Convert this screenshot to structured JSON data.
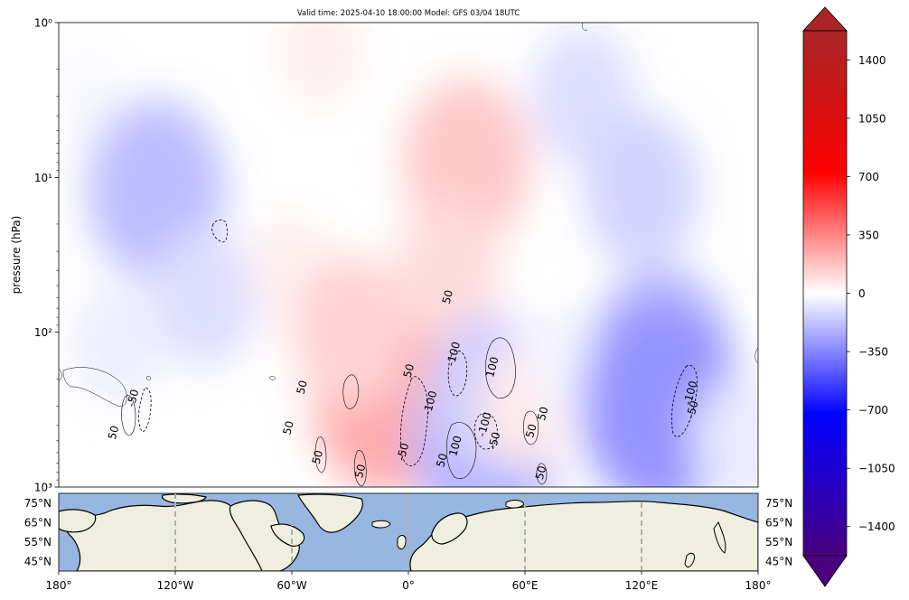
{
  "chart_data": {
    "type": "heatmap",
    "title": "Valid time: 2025-04-10 18:00:00 Model: GFS 03/04 18UTC",
    "xlabel": "",
    "ylabel": "pressure (hPa)",
    "y_scale": "log",
    "y_inverted": true,
    "ylim": [
      1000,
      1
    ],
    "y_ticks": [
      {
        "value": 1,
        "label": "10⁰"
      },
      {
        "value": 10,
        "label": "10¹"
      },
      {
        "value": 100,
        "label": "10²"
      },
      {
        "value": 1000,
        "label": "10³"
      }
    ],
    "xlim": [
      -180,
      180
    ],
    "x_ticks": [
      {
        "value": -180,
        "label": "180°"
      },
      {
        "value": -120,
        "label": "120°W"
      },
      {
        "value": -60,
        "label": "60°W"
      },
      {
        "value": 0,
        "label": "0°"
      },
      {
        "value": 60,
        "label": "60°E"
      },
      {
        "value": 120,
        "label": "120°E"
      },
      {
        "value": 180,
        "label": "180°"
      }
    ],
    "colorbar": {
      "colormap": "purple-blue-white-red-brown (diverging)",
      "range": [
        -1575,
        1575
      ],
      "extend": "both",
      "ticks": [
        {
          "value": 1400,
          "label": "1400"
        },
        {
          "value": 1050,
          "label": "1050"
        },
        {
          "value": 700,
          "label": "700"
        },
        {
          "value": 350,
          "label": "350"
        },
        {
          "value": 0,
          "label": "0"
        },
        {
          "value": -350,
          "label": "−350"
        },
        {
          "value": -700,
          "label": "−700"
        },
        {
          "value": -1050,
          "label": "−1050"
        },
        {
          "value": -1400,
          "label": "−1400"
        }
      ]
    },
    "field_anomalies": [
      {
        "lon": -165,
        "p": 3,
        "value": -30
      },
      {
        "lon": -130,
        "p": 12,
        "value": -300
      },
      {
        "lon": -105,
        "p": 60,
        "value": -150
      },
      {
        "lon": -150,
        "p": 120,
        "value": -80
      },
      {
        "lon": -45,
        "p": 1.5,
        "value": 70
      },
      {
        "lon": -60,
        "p": 40,
        "value": 70
      },
      {
        "lon": -10,
        "p": 250,
        "value": 380
      },
      {
        "lon": -30,
        "p": 100,
        "value": 200
      },
      {
        "lon": 30,
        "p": 8,
        "value": 250
      },
      {
        "lon": 20,
        "p": 40,
        "value": 160
      },
      {
        "lon": 40,
        "p": 500,
        "value": -350
      },
      {
        "lon": 40,
        "p": 250,
        "value": -220
      },
      {
        "lon": 60,
        "p": 300,
        "value": 100
      },
      {
        "lon": 90,
        "p": 3,
        "value": -150
      },
      {
        "lon": 80,
        "p": 150,
        "value": -50
      },
      {
        "lon": 120,
        "p": 12,
        "value": -200
      },
      {
        "lon": 130,
        "p": 150,
        "value": -320
      },
      {
        "lon": 130,
        "p": 300,
        "value": -450
      },
      {
        "lon": 170,
        "p": 500,
        "value": -100
      }
    ],
    "contour_labels": [
      {
        "lon": -150,
        "p": 450,
        "label": "50"
      },
      {
        "lon": -140,
        "p": 270,
        "label": "-50"
      },
      {
        "lon": -53,
        "p": 230,
        "label": "50"
      },
      {
        "lon": -60,
        "p": 420,
        "label": "50"
      },
      {
        "lon": -45,
        "p": 650,
        "label": "50"
      },
      {
        "lon": -23,
        "p": 800,
        "label": "50"
      },
      {
        "lon": 2,
        "p": 180,
        "label": "50"
      },
      {
        "lon": -1,
        "p": 600,
        "label": "-50"
      },
      {
        "lon": 13,
        "p": 290,
        "label": "-100"
      },
      {
        "lon": 22,
        "p": 60,
        "label": "50"
      },
      {
        "lon": 25,
        "p": 140,
        "label": "-100"
      },
      {
        "lon": 26,
        "p": 550,
        "label": "100"
      },
      {
        "lon": 19,
        "p": 680,
        "label": "50"
      },
      {
        "lon": 45,
        "p": 170,
        "label": "100"
      },
      {
        "lon": 41,
        "p": 400,
        "label": "-100"
      },
      {
        "lon": 46,
        "p": 510,
        "label": "-50"
      },
      {
        "lon": 65,
        "p": 440,
        "label": "50"
      },
      {
        "lon": 71,
        "p": 340,
        "label": "50"
      },
      {
        "lon": 70,
        "p": 820,
        "label": "50"
      },
      {
        "lon": 147,
        "p": 250,
        "label": "-100"
      },
      {
        "lon": 148,
        "p": 320,
        "label": "-50"
      }
    ],
    "map_panel": {
      "lat_labels": [
        "75°N",
        "65°N",
        "55°N",
        "45°N"
      ],
      "gridline_lons": [
        -120,
        -60,
        0,
        60,
        120
      ]
    },
    "colors": {
      "ocean": "#97b6e1",
      "land": "#efefdf",
      "coast": "#000000",
      "gridline": "#b0b0b0"
    }
  }
}
